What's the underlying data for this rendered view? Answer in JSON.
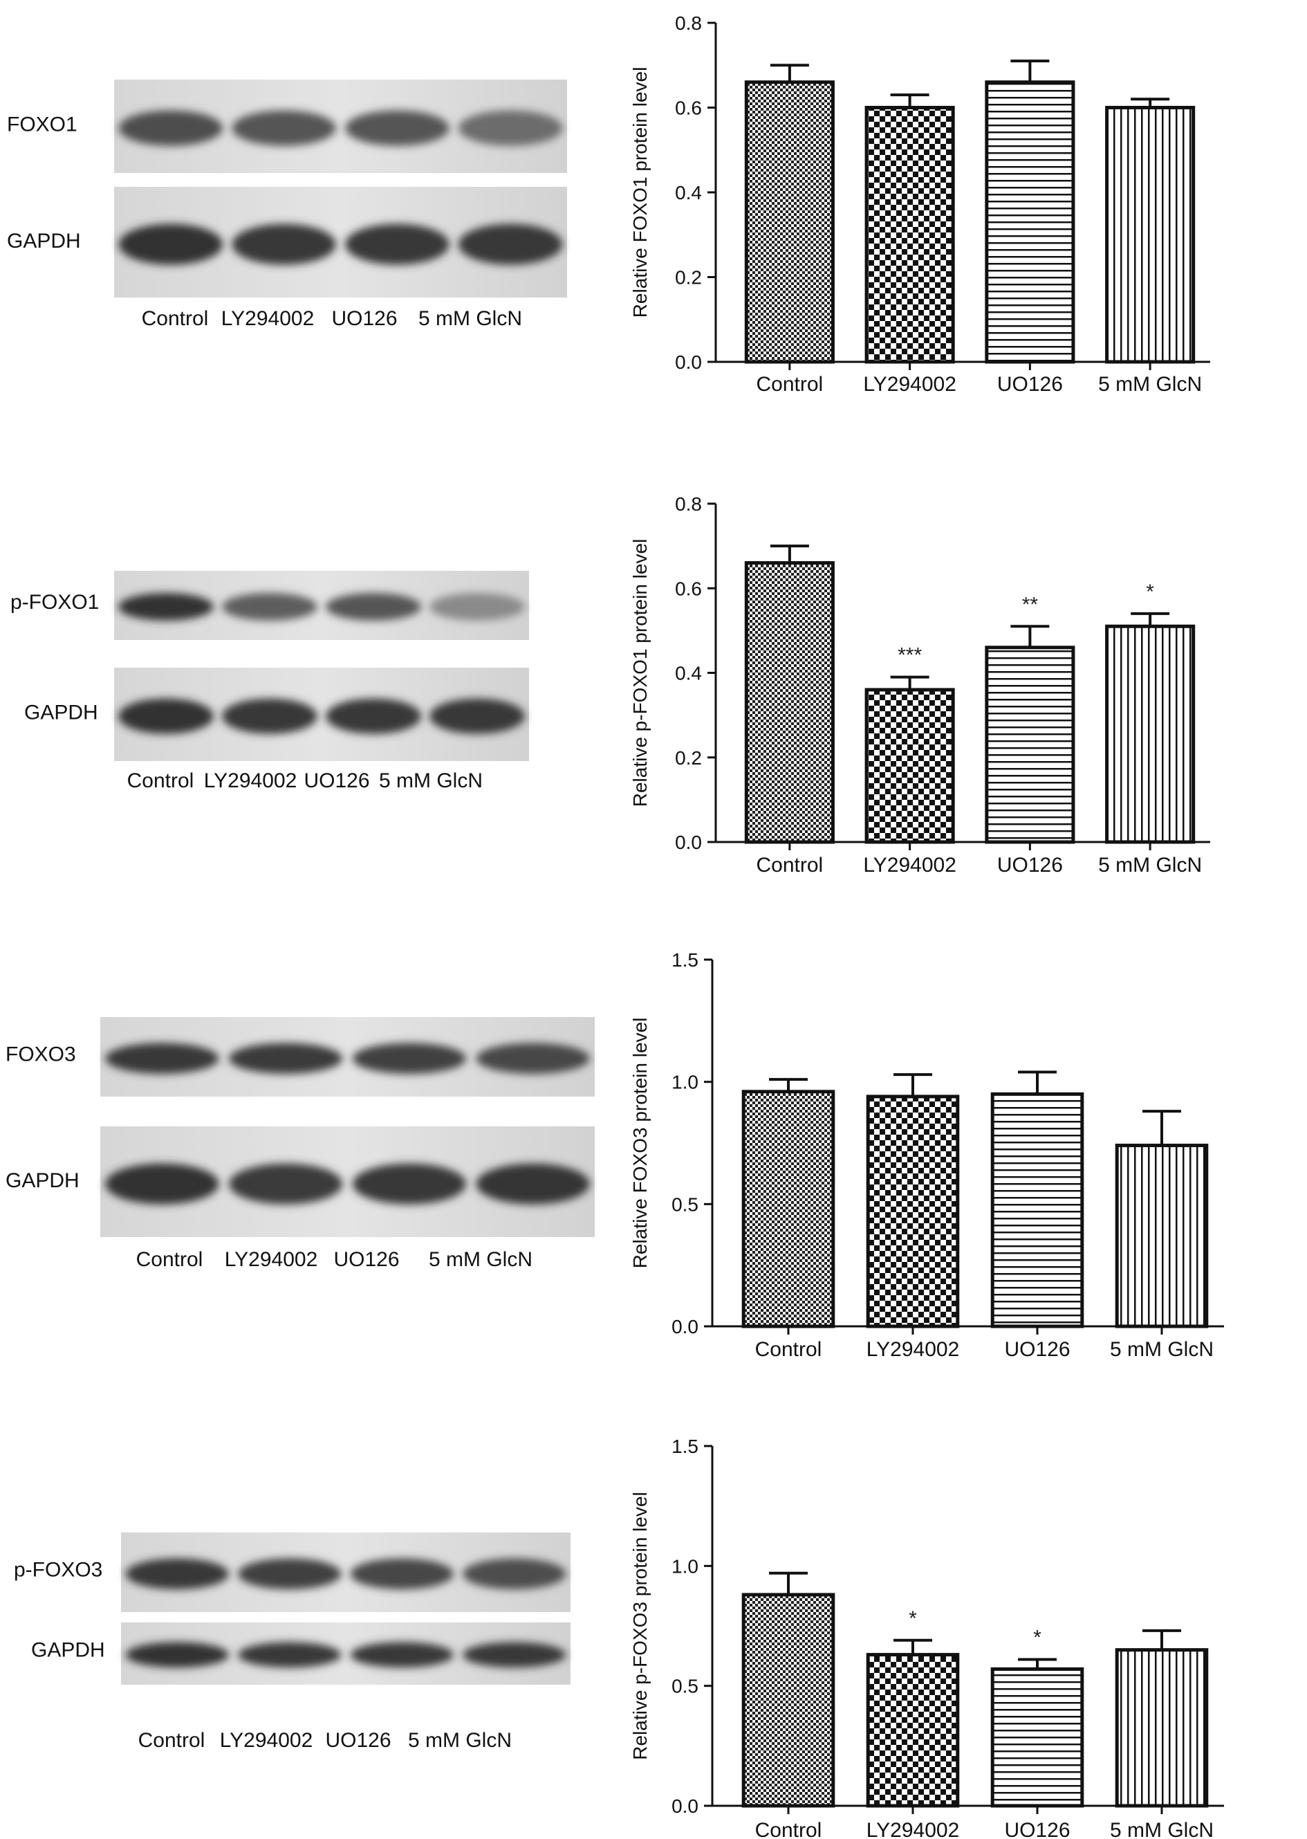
{
  "panels": [
    {
      "blot": {
        "rows": [
          {
            "label": "FOXO1",
            "intensity": [
              0.75,
              0.7,
              0.7,
              0.55
            ]
          },
          {
            "label": "GAPDH",
            "intensity": [
              0.95,
              0.9,
              0.9,
              0.9
            ]
          }
        ],
        "lanes": [
          "Control",
          "LY294002",
          "UO126",
          "5 mM  GlcN"
        ]
      }
    },
    {
      "blot": {
        "rows": [
          {
            "label": "p-FOXO1",
            "intensity": [
              0.95,
              0.65,
              0.7,
              0.35
            ]
          },
          {
            "label": "GAPDH",
            "intensity": [
              0.95,
              0.9,
              0.9,
              0.9
            ]
          }
        ],
        "lanes": [
          "Control",
          "LY294002",
          "UO126",
          "5 mM GlcN"
        ]
      }
    },
    {
      "blot": {
        "rows": [
          {
            "label": "FOXO3",
            "intensity": [
              0.9,
              0.88,
              0.85,
              0.8
            ]
          },
          {
            "label": "GAPDH",
            "intensity": [
              0.95,
              0.88,
              0.9,
              0.92
            ]
          }
        ],
        "lanes": [
          "Control",
          "LY294002",
          "UO126",
          "5 mM GlcN"
        ]
      }
    },
    {
      "blot": {
        "rows": [
          {
            "label": "p-FOXO3",
            "intensity": [
              0.9,
              0.85,
              0.8,
              0.75
            ]
          },
          {
            "label": "GAPDH",
            "intensity": [
              0.95,
              0.9,
              0.9,
              0.9
            ]
          }
        ],
        "lanes": [
          "Control",
          "LY294002",
          "UO126",
          "5 mM GlcN"
        ]
      }
    }
  ],
  "chart_data": [
    {
      "type": "bar",
      "categories": [
        "Control",
        "LY294002",
        "UO126",
        "5 mM GlcN"
      ],
      "values": [
        0.66,
        0.6,
        0.66,
        0.6
      ],
      "errors": [
        0.04,
        0.03,
        0.05,
        0.02
      ],
      "annotations": [
        "",
        "",
        "",
        ""
      ],
      "patterns": [
        "checker-fine",
        "checker",
        "hlines",
        "vlines"
      ],
      "xlabel": "",
      "ylabel": "Relative FOXO1 protein level",
      "ylim": [
        0,
        0.8
      ],
      "yticks": [
        "0.0",
        "0.2",
        "0.4",
        "0.6",
        "0.8"
      ],
      "grid": false
    },
    {
      "type": "bar",
      "categories": [
        "Control",
        "LY294002",
        "UO126",
        "5 mM GlcN"
      ],
      "values": [
        0.66,
        0.36,
        0.46,
        0.51
      ],
      "errors": [
        0.04,
        0.03,
        0.05,
        0.03
      ],
      "annotations": [
        "",
        "***",
        "**",
        "*"
      ],
      "patterns": [
        "checker-fine",
        "checker",
        "hlines",
        "vlines"
      ],
      "xlabel": "",
      "ylabel": "Relative p-FOXO1 protein level",
      "ylim": [
        0,
        0.8
      ],
      "yticks": [
        "0.0",
        "0.2",
        "0.4",
        "0.6",
        "0.8"
      ],
      "grid": false
    },
    {
      "type": "bar",
      "categories": [
        "Control",
        "LY294002",
        "UO126",
        "5 mM GlcN"
      ],
      "values": [
        0.96,
        0.94,
        0.95,
        0.74
      ],
      "errors": [
        0.05,
        0.09,
        0.09,
        0.14
      ],
      "annotations": [
        "",
        "",
        "",
        ""
      ],
      "patterns": [
        "checker-fine",
        "checker",
        "hlines",
        "vlines"
      ],
      "xlabel": "",
      "ylabel": "Relative FOXO3 protein level",
      "ylim": [
        0,
        1.5
      ],
      "yticks": [
        "0.0",
        "0.5",
        "1.0",
        "1.5"
      ],
      "grid": false
    },
    {
      "type": "bar",
      "categories": [
        "Control",
        "LY294002",
        "UO126",
        "5 mM GlcN"
      ],
      "values": [
        0.88,
        0.63,
        0.57,
        0.65
      ],
      "errors": [
        0.09,
        0.06,
        0.04,
        0.08
      ],
      "annotations": [
        "",
        "*",
        "*",
        ""
      ],
      "patterns": [
        "checker-fine",
        "checker",
        "hlines",
        "vlines"
      ],
      "xlabel": "",
      "ylabel": "Relative p-FOXO3 protein level",
      "ylim": [
        0,
        1.5
      ],
      "yticks": [
        "0.0",
        "0.5",
        "1.0",
        "1.5"
      ],
      "grid": false
    }
  ]
}
